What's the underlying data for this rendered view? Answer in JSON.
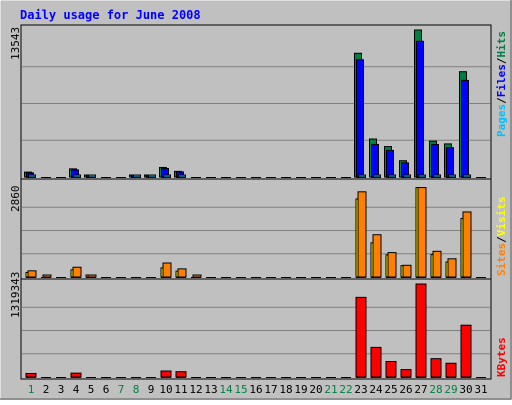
{
  "chart_data": [
    {
      "type": "bar",
      "title": "Daily usage for June 2008",
      "categories": [
        "1",
        "2",
        "3",
        "4",
        "5",
        "6",
        "7",
        "8",
        "9",
        "10",
        "11",
        "12",
        "13",
        "14",
        "15",
        "16",
        "17",
        "18",
        "19",
        "20",
        "21",
        "22",
        "23",
        "24",
        "25",
        "26",
        "27",
        "28",
        "29",
        "30",
        "31"
      ],
      "weekend_days": [
        "1",
        "7",
        "8",
        "14",
        "15",
        "21",
        "22",
        "28",
        "29"
      ],
      "ymax_label": "13543",
      "ylim": [
        0,
        13543
      ],
      "legend": [
        "Pages",
        "/",
        "Files",
        "/",
        "Hits"
      ],
      "series": [
        {
          "name": "Hits",
          "color": "#008040",
          "values": [
            450,
            0,
            0,
            750,
            150,
            0,
            0,
            110,
            60,
            880,
            520,
            0,
            0,
            0,
            0,
            0,
            0,
            0,
            0,
            0,
            0,
            0,
            11400,
            3500,
            2800,
            1500,
            13543,
            3300,
            3050,
            9700,
            0
          ]
        },
        {
          "name": "Files",
          "color": "#0000ff",
          "values": [
            380,
            0,
            0,
            650,
            100,
            0,
            0,
            80,
            40,
            780,
            460,
            0,
            0,
            0,
            0,
            0,
            0,
            0,
            0,
            0,
            0,
            0,
            10800,
            3000,
            2450,
            1300,
            12500,
            3000,
            2700,
            8900,
            0
          ]
        },
        {
          "name": "Pages",
          "color": "#00c0ff",
          "values": [
            50,
            0,
            0,
            60,
            10,
            0,
            0,
            10,
            5,
            70,
            40,
            0,
            0,
            0,
            0,
            0,
            0,
            0,
            0,
            0,
            0,
            0,
            150,
            100,
            80,
            60,
            170,
            90,
            80,
            130,
            0
          ]
        }
      ]
    },
    {
      "type": "bar",
      "ymax_label": "2860",
      "ylim": [
        0,
        2860
      ],
      "legend": [
        "Sites",
        "/",
        "Visits"
      ],
      "series": [
        {
          "name": "Visits",
          "color": "#ffff00",
          "values": [
            140,
            0,
            0,
            220,
            20,
            0,
            0,
            0,
            0,
            280,
            180,
            0,
            0,
            0,
            0,
            0,
            0,
            0,
            0,
            0,
            0,
            0,
            2400,
            1050,
            680,
            350,
            2750,
            690,
            460,
            1800,
            0
          ]
        },
        {
          "name": "Sites",
          "color": "#ff8000",
          "values": [
            190,
            30,
            0,
            300,
            50,
            0,
            0,
            0,
            0,
            430,
            250,
            40,
            0,
            0,
            0,
            0,
            0,
            0,
            0,
            0,
            0,
            0,
            2620,
            1300,
            750,
            360,
            2750,
            790,
            560,
            2000,
            0
          ]
        }
      ]
    },
    {
      "type": "bar",
      "ymax_label": "1319343",
      "ylim": [
        0,
        1319343
      ],
      "legend": [
        "KBytes"
      ],
      "series": [
        {
          "name": "KBytes",
          "color": "#ff0000",
          "values": [
            50000,
            0,
            0,
            55000,
            0,
            0,
            0,
            0,
            0,
            85000,
            75000,
            0,
            0,
            0,
            0,
            0,
            0,
            0,
            0,
            0,
            0,
            0,
            1130000,
            420000,
            220000,
            105000,
            1319343,
            260000,
            195000,
            735000,
            0
          ]
        }
      ]
    }
  ],
  "colors": {
    "panel_bg": "#c0c0c0",
    "title": "#0000ff",
    "weekday": "#000000",
    "weekend": "#008040"
  }
}
